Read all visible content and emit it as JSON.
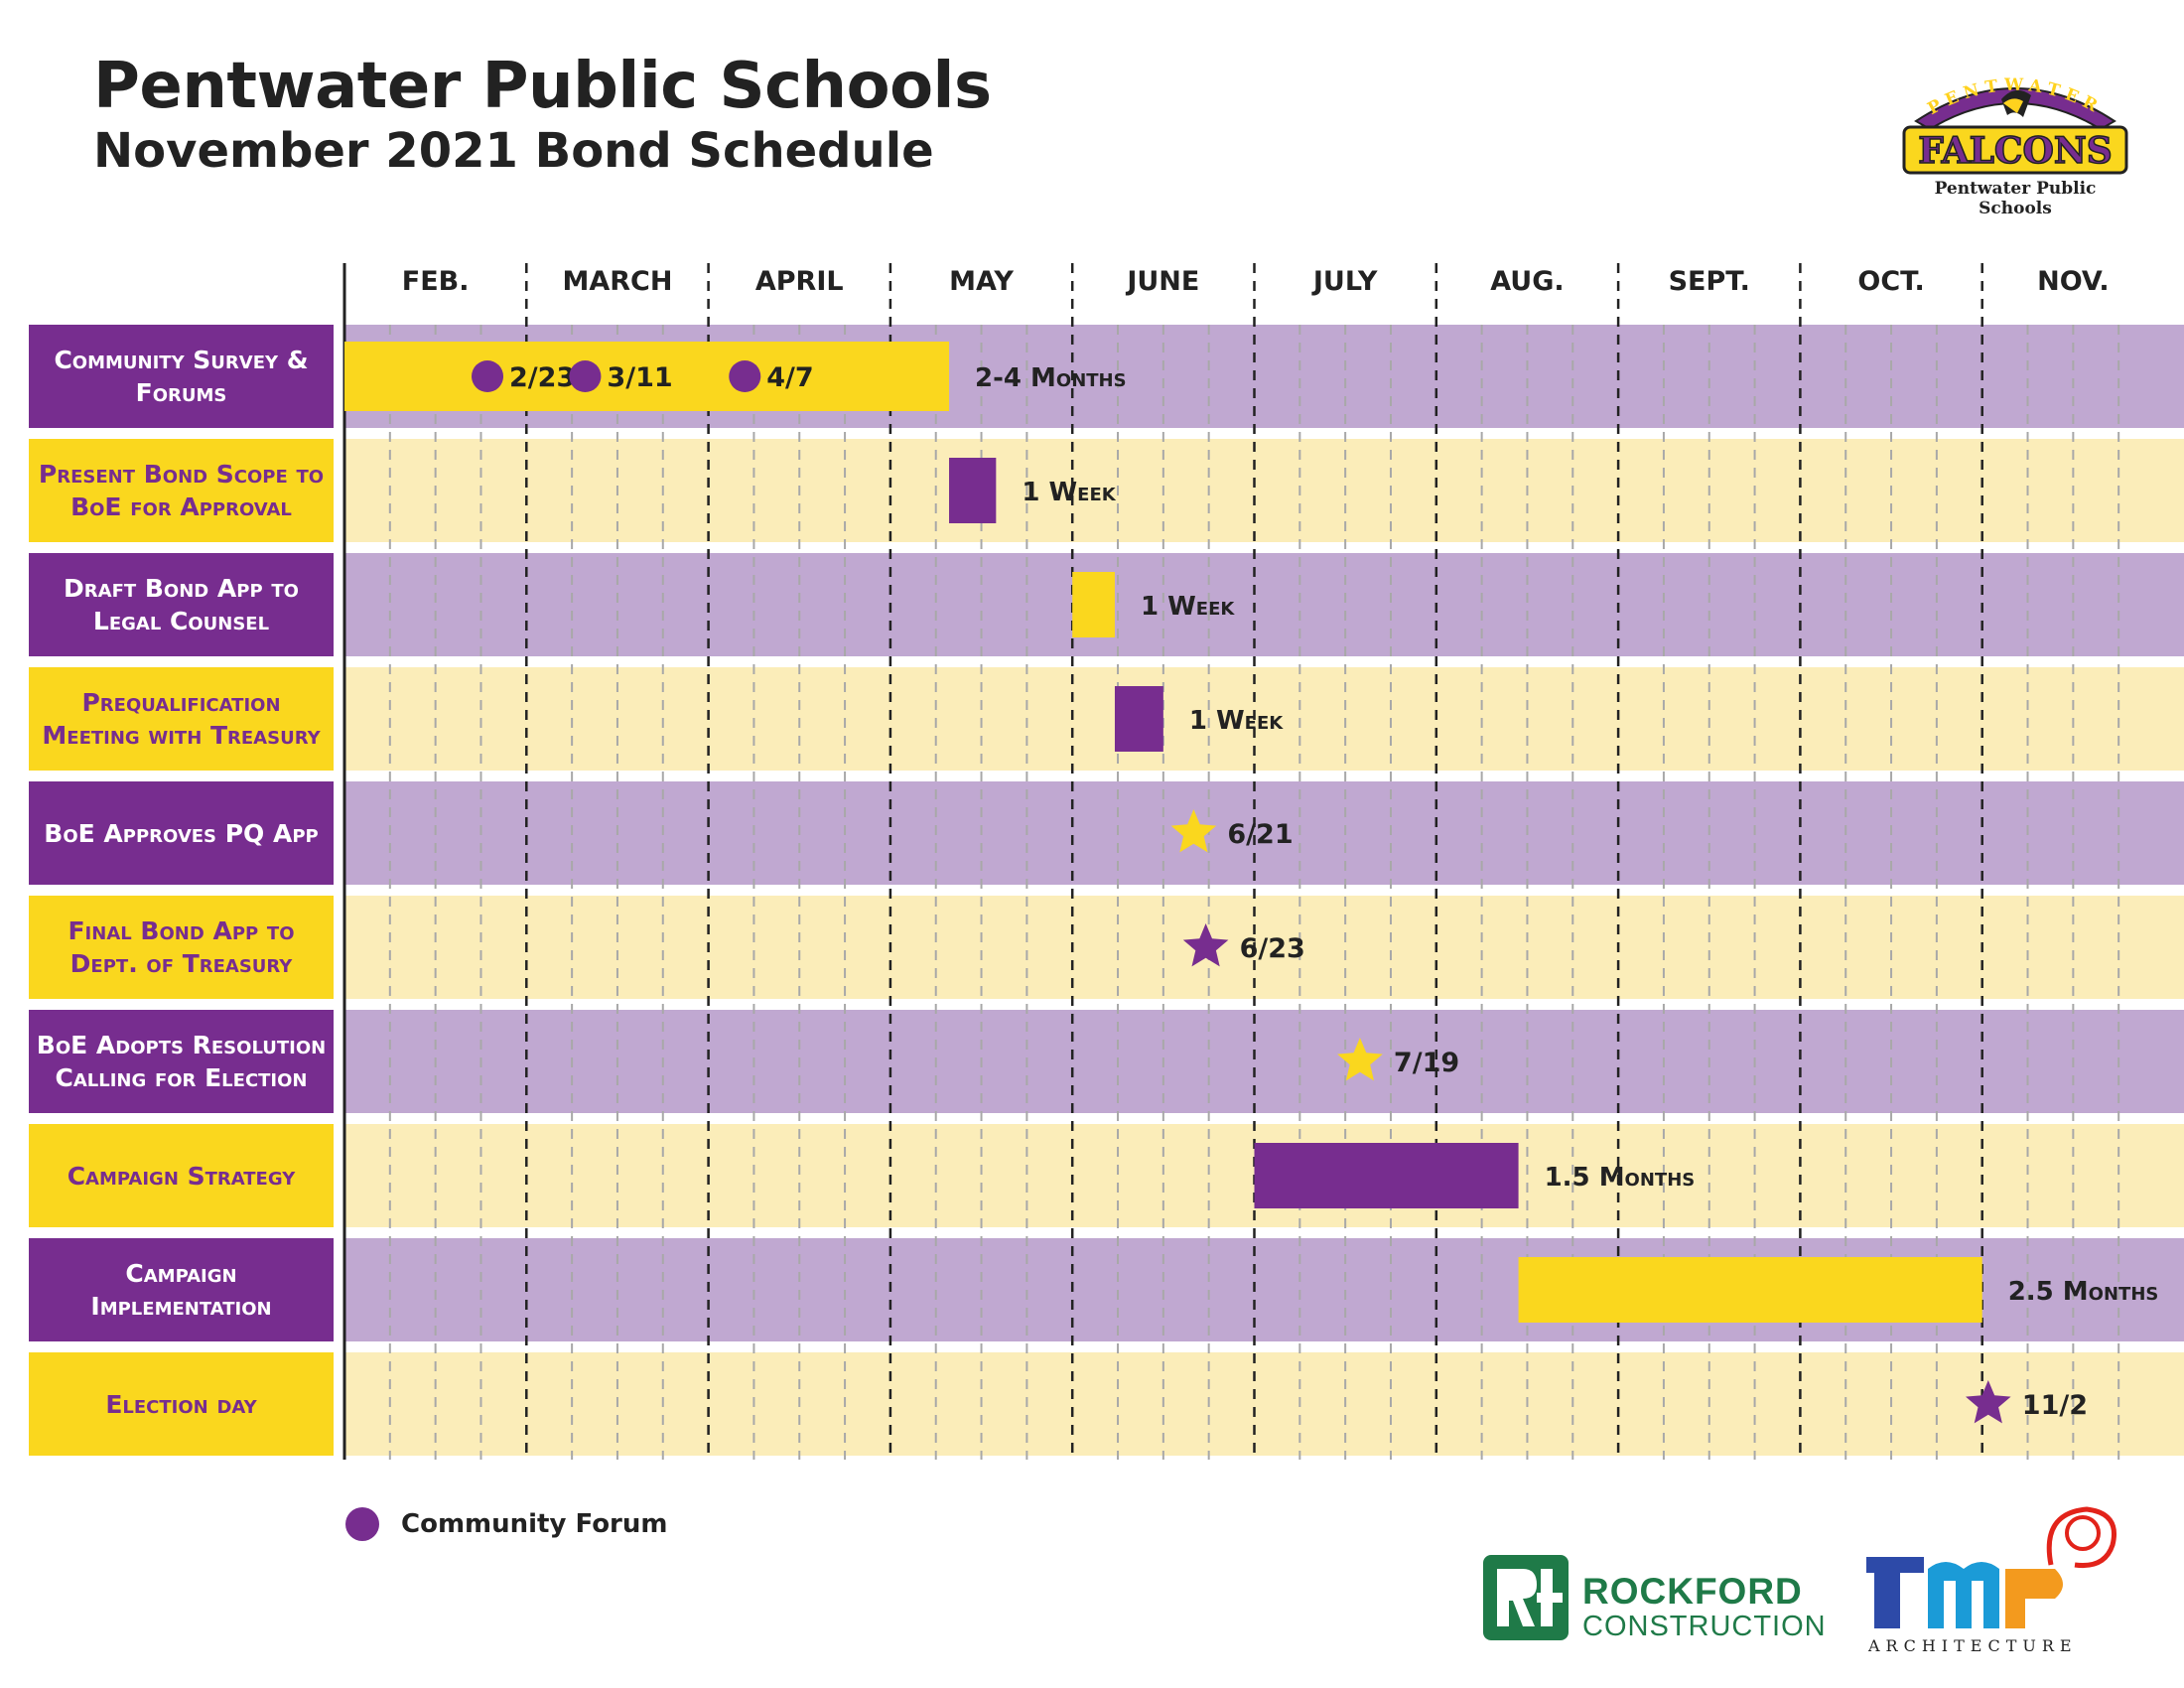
{
  "header": {
    "title": "Pentwater Public Schools",
    "subtitle": "November 2021 Bond Schedule"
  },
  "logos": {
    "falcons_arc": "PENTWATER",
    "falcons_word": "FALCONS",
    "falcons_caption": "Pentwater Public Schools",
    "rockford_line1": "ROCKFORD",
    "rockford_line2": "CONSTRUCTION",
    "tmp_caption": "ARCHITECTURE"
  },
  "legend": {
    "label": "Community Forum",
    "icon": "purple-circle-icon"
  },
  "colors": {
    "purple": "#772d8f",
    "yellow": "#fad71e",
    "purple_band": "#c0a8d1",
    "yellow_band": "#fbedb9"
  },
  "chart_data": {
    "type": "gantt",
    "year": 2021,
    "months": [
      "FEB.",
      "MARCH",
      "APRIL",
      "MAY",
      "JUNE",
      "JULY",
      "AUG.",
      "SEPT.",
      "OCT.",
      "NOV."
    ],
    "rows": [
      {
        "label": "Community Survey & Forums",
        "style": "purple",
        "bar": {
          "start": "2021-02-01",
          "end": "2021-05-11",
          "color": "yellow"
        },
        "markers": [
          {
            "date": "2021-02-23",
            "shape": "circle",
            "label": "2/23"
          },
          {
            "date": "2021-03-11",
            "shape": "circle",
            "label": "3/11"
          },
          {
            "date": "2021-04-07",
            "shape": "circle",
            "label": "4/7"
          }
        ],
        "duration": "2-4 Months"
      },
      {
        "label": "Present Bond Scope to BoE for Approval",
        "style": "yellow",
        "bar": {
          "start": "2021-05-11",
          "end": "2021-05-19",
          "color": "purple"
        },
        "duration": "1 Week"
      },
      {
        "label": "Draft Bond App to Legal Counsel",
        "style": "purple",
        "bar": {
          "start": "2021-06-01",
          "end": "2021-06-08",
          "color": "yellow"
        },
        "duration": "1 Week"
      },
      {
        "label": "Prequalification Meeting with Treasury",
        "style": "yellow",
        "bar": {
          "start": "2021-06-08",
          "end": "2021-06-16",
          "color": "purple"
        },
        "duration": "1 Week"
      },
      {
        "label": "BoE Approves PQ App",
        "style": "purple",
        "markers": [
          {
            "date": "2021-06-21",
            "shape": "star",
            "color": "yellow",
            "label": "6/21"
          }
        ]
      },
      {
        "label": "Final Bond App to Dept. of Treasury",
        "style": "yellow",
        "markers": [
          {
            "date": "2021-06-23",
            "shape": "star",
            "color": "purple",
            "label": "6/23"
          }
        ]
      },
      {
        "label": "BoE Adopts Resolution Calling for Election",
        "style": "purple",
        "markers": [
          {
            "date": "2021-07-19",
            "shape": "star",
            "color": "yellow",
            "label": "7/19"
          }
        ]
      },
      {
        "label": "Campaign Strategy",
        "style": "yellow",
        "bar": {
          "start": "2021-07-01",
          "end": "2021-08-15",
          "color": "purple"
        },
        "duration": "1.5 Months"
      },
      {
        "label": "Campaign Implementation",
        "style": "purple",
        "bar": {
          "start": "2021-08-15",
          "end": "2021-11-01",
          "color": "yellow"
        },
        "duration": "2.5 Months"
      },
      {
        "label": "Election day",
        "style": "yellow",
        "markers": [
          {
            "date": "2021-11-02",
            "shape": "star",
            "color": "purple",
            "label": "11/2"
          }
        ]
      }
    ]
  }
}
